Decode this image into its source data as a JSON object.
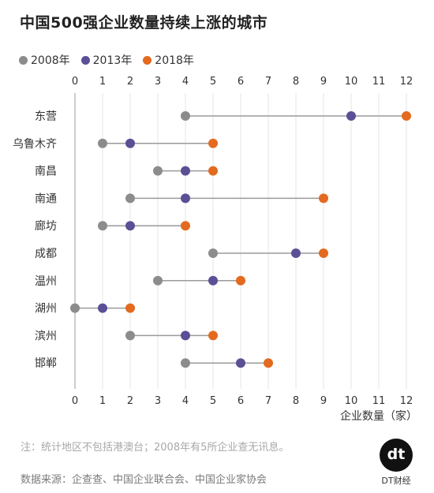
{
  "title": "中国500强企业数量持续上涨的城市",
  "legend": [
    {
      "label": "2008年",
      "color": "#8c8c8c"
    },
    {
      "label": "2013年",
      "color": "#5b4f96"
    },
    {
      "label": "2018年",
      "color": "#e36a1f"
    }
  ],
  "chart_data": {
    "type": "dot",
    "title": "中国500强企业数量持续上涨的城市",
    "xlabel": "企业数量（家）",
    "ylabel": "",
    "xlim": [
      0,
      12
    ],
    "x_ticks": [
      "0",
      "1",
      "2",
      "3",
      "4",
      "5",
      "6",
      "7",
      "8",
      "9",
      "10",
      "11",
      "12"
    ],
    "categories": [
      "东营",
      "乌鲁木齐",
      "南昌",
      "南通",
      "廊坊",
      "成都",
      "温州",
      "湖州",
      "滨州",
      "邯郸"
    ],
    "series": [
      {
        "name": "2008年",
        "color": "#8c8c8c",
        "values": [
          4,
          1,
          3,
          2,
          1,
          5,
          3,
          0,
          2,
          4
        ]
      },
      {
        "name": "2013年",
        "color": "#5b4f96",
        "values": [
          10,
          2,
          4,
          4,
          2,
          8,
          5,
          1,
          4,
          6
        ]
      },
      {
        "name": "2018年",
        "color": "#e36a1f",
        "values": [
          12,
          5,
          5,
          9,
          4,
          9,
          6,
          2,
          5,
          7
        ]
      }
    ],
    "grid": true,
    "legend_position": "top-left"
  },
  "note": "注：统计地区不包括港澳台；2008年有5所企业查无讯息。",
  "source": "数据来源：企查查、中国企业联合会、中国企业家协会",
  "logo": {
    "mark": "dt",
    "text": "DT财经"
  }
}
